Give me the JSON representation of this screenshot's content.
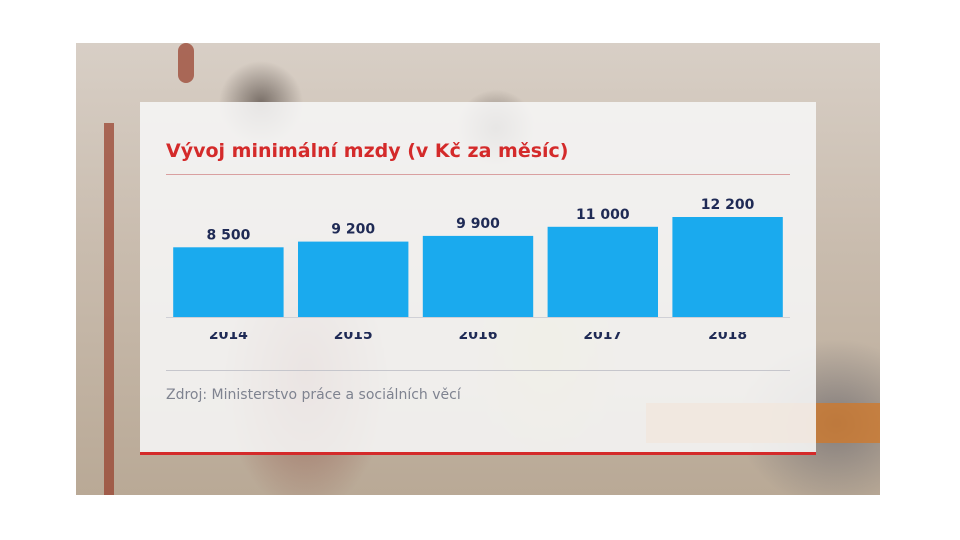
{
  "chart_data": {
    "type": "bar",
    "title": "Vývoj minimální mzdy (v Kč za měsíc)",
    "categories": [
      "2014",
      "2015",
      "2016",
      "2017",
      "2018"
    ],
    "values": [
      8500,
      9200,
      9900,
      11000,
      12200
    ],
    "value_labels": [
      "8 500",
      "9 200",
      "9 900",
      "11 000",
      "12 200"
    ],
    "ylim": [
      0,
      12200
    ],
    "grid": false,
    "bar_color": "#1aaaee",
    "source": "Zdroj: Ministerstvo práce a sociálních věcí"
  },
  "colors": {
    "accent": "#d42a2a",
    "label_text": "#1f2a55",
    "source_text": "#7f8390"
  }
}
